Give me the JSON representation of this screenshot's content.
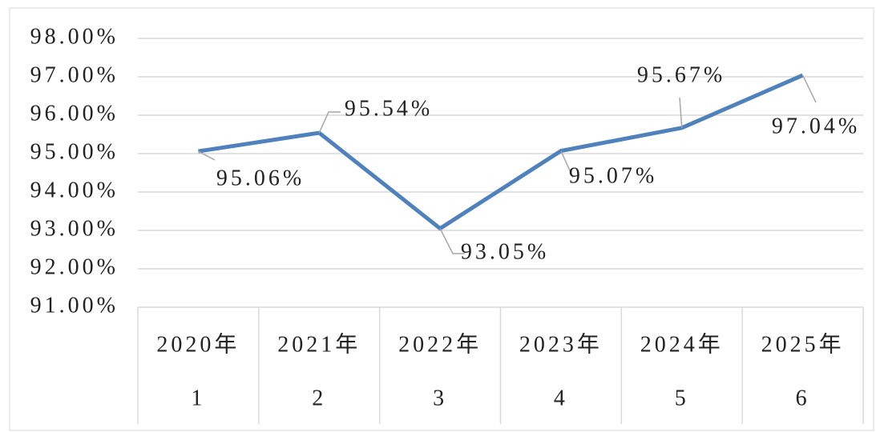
{
  "chart_data": {
    "type": "line",
    "categories": [
      "2020年",
      "2021年",
      "2022年",
      "2023年",
      "2024年",
      "2025年"
    ],
    "subcategories": [
      "1",
      "2",
      "3",
      "4",
      "5",
      "6"
    ],
    "series": [
      {
        "color": "#4f81bd",
        "values": [
          95.06,
          95.54,
          93.05,
          95.07,
          95.67,
          97.04
        ],
        "value_labels": [
          "95.06%",
          "95.54%",
          "93.05%",
          "95.07%",
          "95.67%",
          "97.04%"
        ]
      }
    ],
    "ylim": [
      91,
      98
    ],
    "yticks": [
      {
        "value": 91,
        "label": "91.00%"
      },
      {
        "value": 92,
        "label": "92.00%"
      },
      {
        "value": 93,
        "label": "93.00%"
      },
      {
        "value": 94,
        "label": "94.00%"
      },
      {
        "value": 95,
        "label": "95.00%"
      },
      {
        "value": 96,
        "label": "96.00%"
      },
      {
        "value": 97,
        "label": "97.00%"
      },
      {
        "value": 98,
        "label": "98.00%"
      }
    ],
    "grid": true
  }
}
